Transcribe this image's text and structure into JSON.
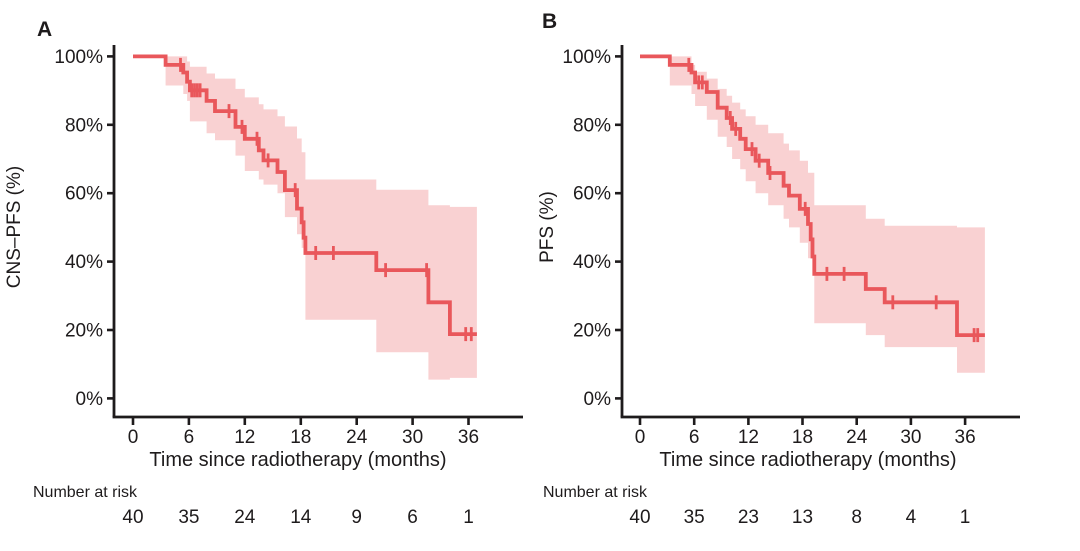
{
  "figure_bg": "#ffffff",
  "text_color": "#1e1b1c",
  "chart_data": [
    {
      "type": "line",
      "subtype": "kaplan-meier-step-with-confidence-band",
      "panel": "A",
      "title": "",
      "xlabel": "Time since radiotherapy (months)",
      "ylabel": "CNS–PFS (%)",
      "xlim": [
        0,
        38.5
      ],
      "ylim": [
        0,
        100
      ],
      "xticks": [
        0,
        6,
        12,
        18,
        24,
        30,
        36
      ],
      "yticks": [
        0,
        20,
        40,
        60,
        80,
        100
      ],
      "ytick_suffix": "%",
      "grid": false,
      "legend": "none",
      "series": [
        {
          "name": "CNS-PFS",
          "color": "#e9575b",
          "band_color": "#f9d1d2",
          "steps": [
            [
              0,
              100
            ],
            [
              3.5,
              97.5
            ],
            [
              5.4,
              95.3
            ],
            [
              5.8,
              92.6
            ],
            [
              6.1,
              90.1
            ],
            [
              7.9,
              87
            ],
            [
              8.8,
              84
            ],
            [
              11.0,
              79.4
            ],
            [
              12.0,
              75.9
            ],
            [
              13.5,
              72.5
            ],
            [
              14.0,
              69.6
            ],
            [
              15.5,
              66.2
            ],
            [
              16.3,
              60.9
            ],
            [
              17.6,
              55.5
            ],
            [
              18.1,
              51.5
            ],
            [
              18.3,
              47
            ],
            [
              18.5,
              42.5
            ],
            [
              26.1,
              37.5
            ],
            [
              31.7,
              28.1
            ],
            [
              34.0,
              18.8
            ]
          ],
          "end_time": 36.9,
          "censors": [
            [
              5.1,
              97.5
            ],
            [
              6.3,
              90.1
            ],
            [
              6.6,
              90.1
            ],
            [
              6.9,
              90.1
            ],
            [
              7.2,
              90.1
            ],
            [
              10.3,
              84
            ],
            [
              11.7,
              79.4
            ],
            [
              13.3,
              75.9
            ],
            [
              14.5,
              69.6
            ],
            [
              17.4,
              60.9
            ],
            [
              19.6,
              42.5
            ],
            [
              21.5,
              42.5
            ],
            [
              27.1,
              37.5
            ],
            [
              31.5,
              37.5
            ],
            [
              35.7,
              18.8
            ],
            [
              36.3,
              18.8
            ]
          ],
          "band": [
            [
              3.5,
              100,
              91.5
            ],
            [
              5.4,
              100,
              89
            ],
            [
              5.8,
              98.5,
              87
            ],
            [
              6.1,
              97,
              81
            ],
            [
              7.9,
              95,
              77.5
            ],
            [
              8.8,
              93.5,
              75.5
            ],
            [
              11.0,
              90.5,
              71
            ],
            [
              12.0,
              88,
              66.5
            ],
            [
              13.5,
              86,
              64
            ],
            [
              14.0,
              84.5,
              62.5
            ],
            [
              15.5,
              82.5,
              60
            ],
            [
              16.3,
              79.5,
              53
            ],
            [
              17.6,
              76,
              48
            ],
            [
              18.1,
              72,
              44
            ],
            [
              18.5,
              64,
              23
            ],
            [
              26.1,
              61,
              13.5
            ],
            [
              31.7,
              56.5,
              5.5
            ],
            [
              34.0,
              56,
              6
            ]
          ]
        }
      ],
      "number_at_risk": {
        "label": "Number at risk",
        "times": [
          0,
          6,
          12,
          18,
          24,
          30,
          36
        ],
        "values": [
          "40",
          "35",
          "24",
          "14",
          "9",
          "6",
          "1"
        ]
      }
    },
    {
      "type": "line",
      "subtype": "kaplan-meier-step-with-confidence-band",
      "panel": "B",
      "title": "",
      "xlabel": "Time since radiotherapy (months)",
      "ylabel": "PFS (%)",
      "xlim": [
        0,
        38.5
      ],
      "ylim": [
        0,
        100
      ],
      "xticks": [
        0,
        6,
        12,
        18,
        24,
        30,
        36
      ],
      "yticks": [
        0,
        20,
        40,
        60,
        80,
        100
      ],
      "ytick_suffix": "%",
      "grid": false,
      "legend": "none",
      "series": [
        {
          "name": "PFS",
          "color": "#e9575b",
          "band_color": "#f9d1d2",
          "steps": [
            [
              0,
              100
            ],
            [
              3.3,
              97.5
            ],
            [
              5.7,
              95.3
            ],
            [
              6.1,
              92.4
            ],
            [
              7.4,
              89.6
            ],
            [
              8.6,
              85
            ],
            [
              9.6,
              82
            ],
            [
              10.2,
              78.8
            ],
            [
              11.1,
              75.9
            ],
            [
              11.7,
              72.9
            ],
            [
              12.8,
              69.5
            ],
            [
              14.2,
              65.9
            ],
            [
              15.9,
              62.2
            ],
            [
              16.5,
              59.3
            ],
            [
              17.7,
              55.4
            ],
            [
              18.6,
              51
            ],
            [
              18.9,
              46.5
            ],
            [
              19.1,
              41.5
            ],
            [
              19.3,
              36.4
            ],
            [
              25.0,
              32.0
            ],
            [
              27.1,
              28.1
            ],
            [
              35.1,
              18.5
            ]
          ],
          "end_time": 38.2,
          "censors": [
            [
              5.4,
              97.5
            ],
            [
              6.5,
              92.4
            ],
            [
              6.9,
              92.4
            ],
            [
              10.0,
              82
            ],
            [
              10.6,
              78.8
            ],
            [
              12.4,
              72.9
            ],
            [
              13.2,
              69.5
            ],
            [
              14.4,
              65.9
            ],
            [
              18.3,
              55.4
            ],
            [
              20.7,
              36.4
            ],
            [
              22.6,
              36.4
            ],
            [
              28.0,
              28.1
            ],
            [
              32.8,
              28.1
            ],
            [
              37.0,
              18.5
            ],
            [
              37.4,
              18.5
            ]
          ],
          "band": [
            [
              3.3,
              100,
              91.5
            ],
            [
              5.7,
              97.5,
              89
            ],
            [
              6.1,
              95.5,
              85.5
            ],
            [
              7.4,
              93.5,
              81.5
            ],
            [
              8.6,
              90.5,
              76.5
            ],
            [
              9.6,
              88.5,
              73.5
            ],
            [
              10.2,
              86.5,
              70
            ],
            [
              11.1,
              84.5,
              67
            ],
            [
              11.7,
              82.5,
              63.5
            ],
            [
              12.8,
              80,
              60
            ],
            [
              14.2,
              77.5,
              56.5
            ],
            [
              15.9,
              74.5,
              52.5
            ],
            [
              16.5,
              72.5,
              50
            ],
            [
              17.7,
              69.5,
              45.5
            ],
            [
              18.6,
              66,
              41
            ],
            [
              19.3,
              56.5,
              22
            ],
            [
              25.0,
              52.5,
              18.5
            ],
            [
              27.1,
              50.5,
              15
            ],
            [
              35.1,
              50,
              7.5
            ]
          ]
        }
      ],
      "number_at_risk": {
        "label": "Number at risk",
        "times": [
          0,
          6,
          12,
          18,
          24,
          30,
          36
        ],
        "values": [
          "40",
          "35",
          "23",
          "13",
          "8",
          "4",
          "1"
        ]
      }
    }
  ]
}
